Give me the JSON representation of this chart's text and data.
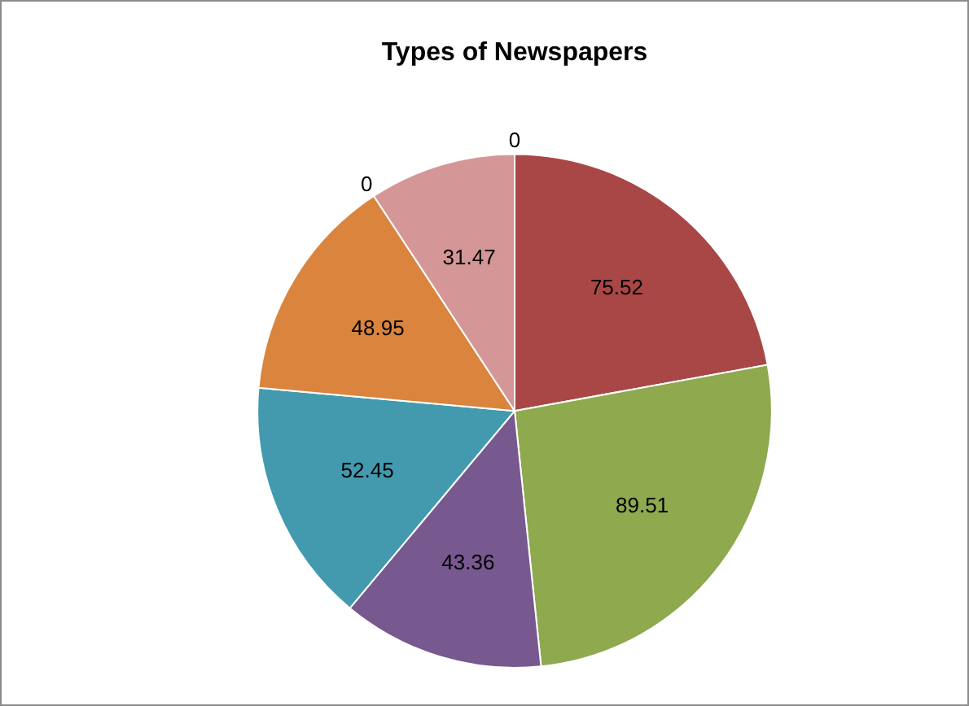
{
  "chart_data": {
    "type": "pie",
    "title": "Types of Newspapers",
    "categories": [
      null,
      null,
      null,
      null,
      null,
      null,
      null,
      null
    ],
    "values": [
      75.52,
      89.51,
      43.36,
      52.45,
      48.95,
      0,
      31.47,
      0
    ],
    "value_labels": [
      "75.52",
      "89.51",
      "43.36",
      "52.45",
      "48.95",
      "0",
      "31.47",
      "0"
    ],
    "colors": [
      "#a94746",
      "#8ea94e",
      "#77588f",
      "#439aae",
      "#db843d",
      "#4572a7",
      "#d49696",
      "#aa4643"
    ],
    "legend": false
  }
}
